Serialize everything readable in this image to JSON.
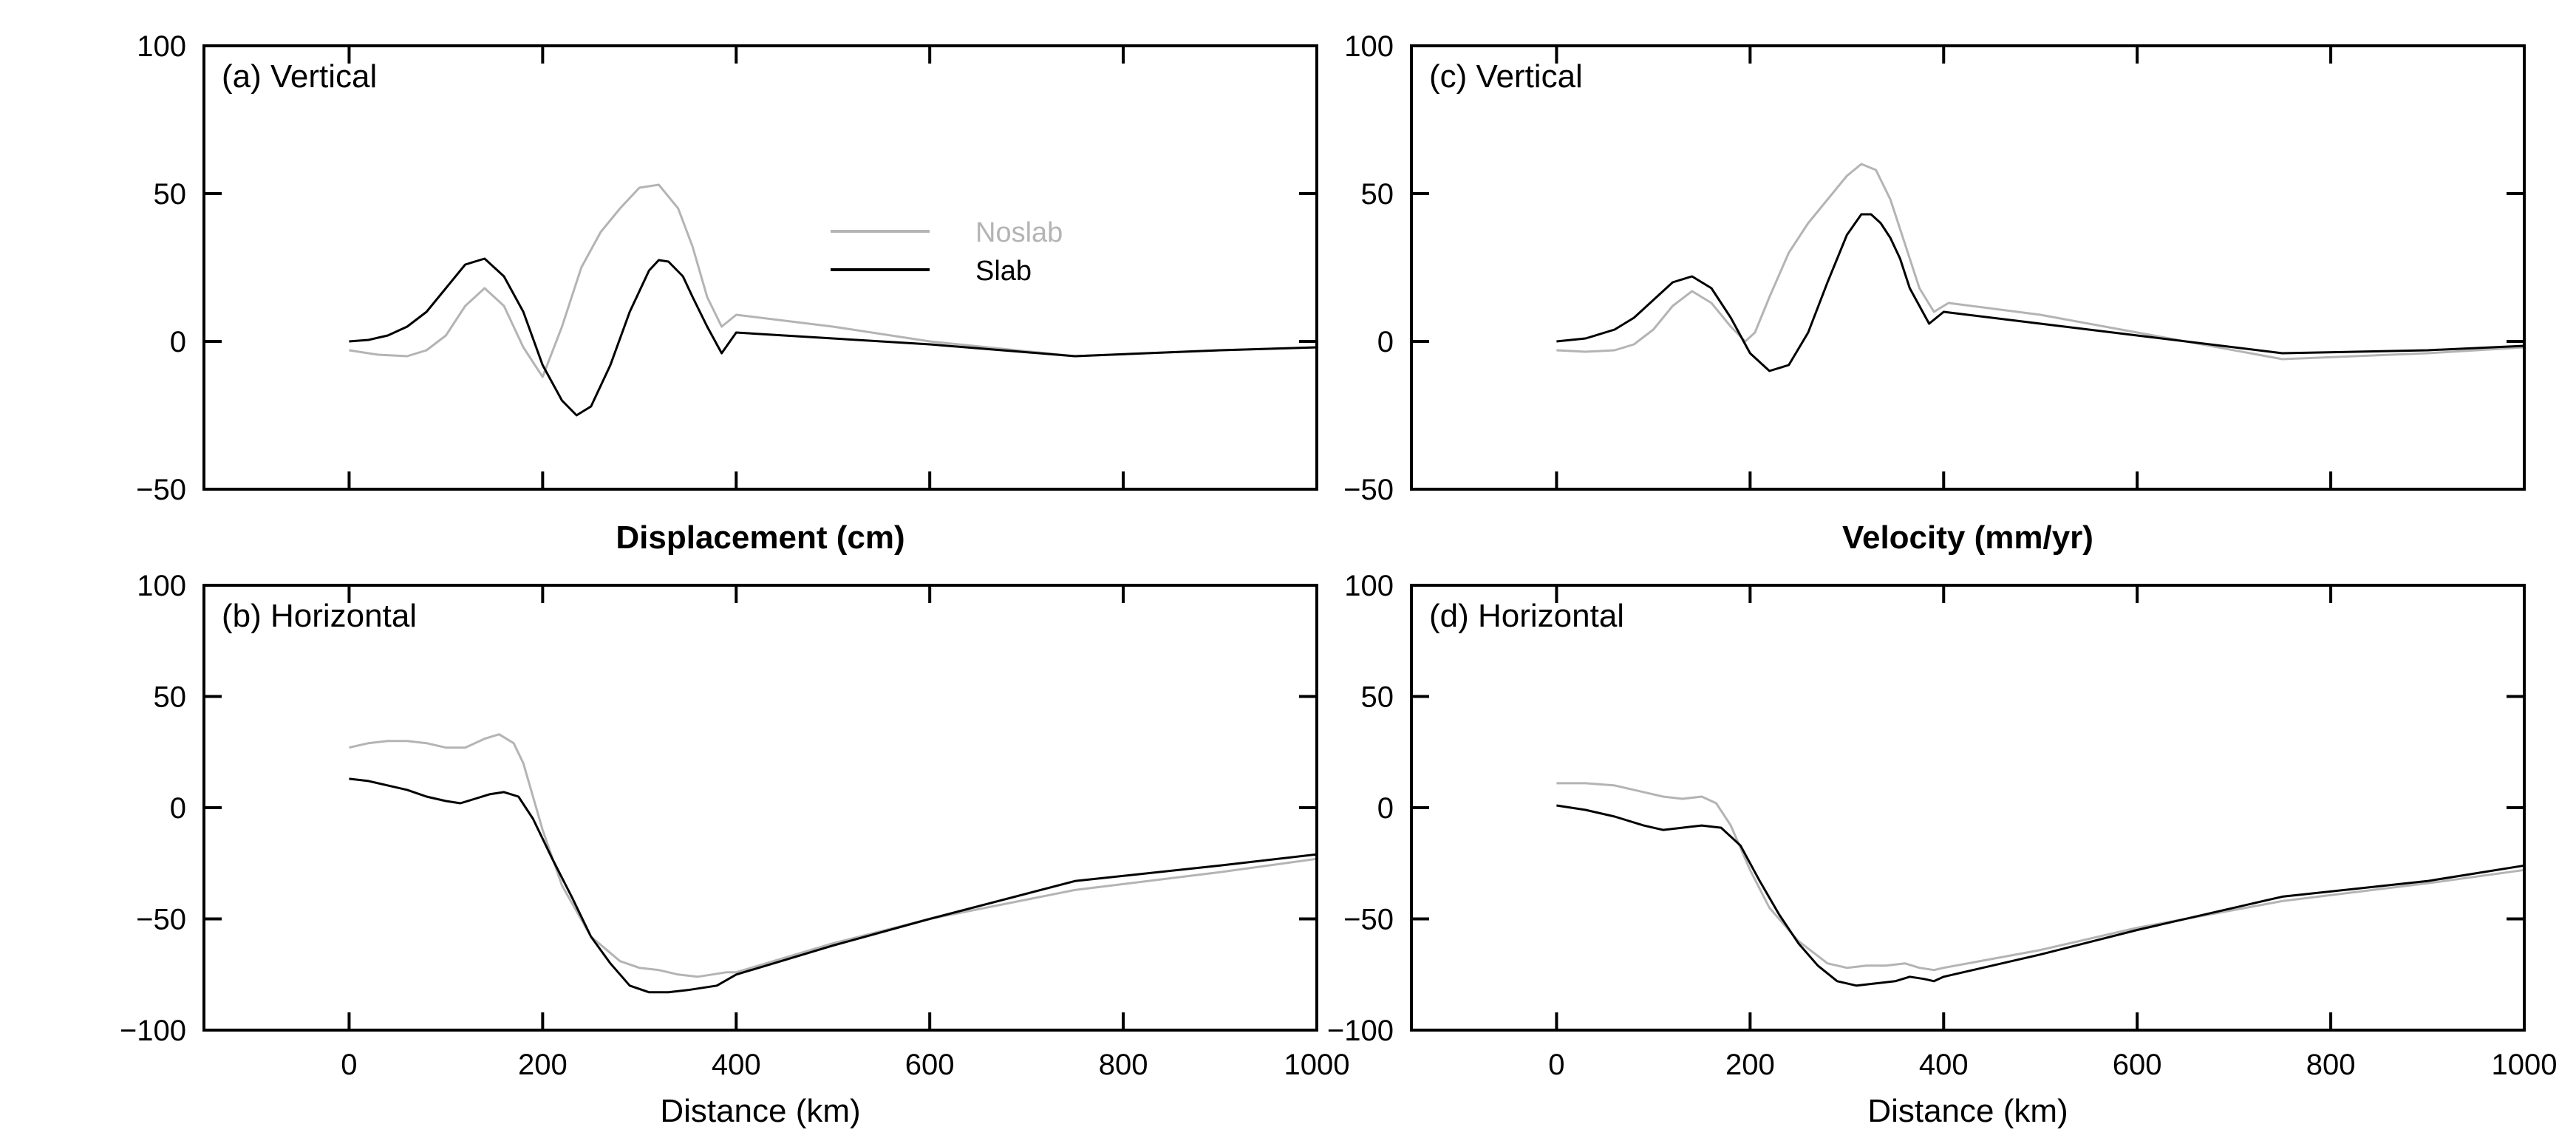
{
  "figure": {
    "xlabel": "Distance (km)",
    "middle_titles": [
      "Displacement (cm)",
      "Velocity (mm/yr)"
    ],
    "legend": [
      {
        "label": "Noslab",
        "color": "#b4b4b4"
      },
      {
        "label": "Slab",
        "color": "#000000"
      }
    ]
  },
  "chart_data": [
    {
      "id": "a",
      "type": "line",
      "panel_label": "(a) Vertical",
      "xlim": [
        -150,
        1000
      ],
      "ylim": [
        -50,
        100
      ],
      "xticks": [
        0,
        200,
        400,
        600,
        800,
        1000
      ],
      "yticks": [
        -50,
        0,
        50,
        100
      ],
      "show_xtick_labels": false,
      "grid": false,
      "legend_position": "upper-middle",
      "series": [
        {
          "name": "Noslab",
          "color": "#b4b4b4",
          "x": [
            0,
            30,
            60,
            80,
            100,
            120,
            140,
            160,
            180,
            200,
            220,
            240,
            260,
            280,
            300,
            320,
            340,
            355,
            370,
            385,
            400,
            500,
            600,
            750,
            900,
            1000
          ],
          "y": [
            -3,
            -4.5,
            -5,
            -3,
            2,
            12,
            18,
            12,
            -2,
            -12,
            5,
            25,
            37,
            45,
            52,
            53,
            45,
            32,
            15,
            5,
            9,
            5,
            0,
            -5,
            -3,
            -2
          ]
        },
        {
          "name": "Slab",
          "color": "#000000",
          "x": [
            0,
            20,
            40,
            60,
            80,
            100,
            120,
            140,
            160,
            180,
            200,
            220,
            235,
            250,
            270,
            290,
            310,
            320,
            330,
            345,
            355,
            370,
            385,
            400,
            500,
            600,
            750,
            900,
            1000
          ],
          "y": [
            0,
            0.5,
            2,
            5,
            10,
            18,
            26,
            28,
            22,
            10,
            -8,
            -20,
            -25,
            -22,
            -8,
            10,
            24,
            27.5,
            27,
            22,
            15,
            5,
            -4,
            3,
            1,
            -1,
            -5,
            -3,
            -2
          ]
        }
      ]
    },
    {
      "id": "b",
      "type": "line",
      "panel_label": "(b) Horizontal",
      "xlim": [
        -150,
        1000
      ],
      "ylim": [
        -100,
        100
      ],
      "xticks": [
        0,
        200,
        400,
        600,
        800,
        1000
      ],
      "yticks": [
        -100,
        -50,
        0,
        50,
        100
      ],
      "show_xtick_labels": true,
      "grid": false,
      "series": [
        {
          "name": "Noslab",
          "color": "#b4b4b4",
          "x": [
            0,
            20,
            40,
            60,
            80,
            100,
            120,
            140,
            155,
            170,
            180,
            200,
            220,
            250,
            280,
            300,
            320,
            340,
            360,
            375,
            390,
            400,
            500,
            600,
            750,
            900,
            1000
          ],
          "y": [
            27,
            29,
            30,
            30,
            29,
            27,
            27,
            31,
            33,
            29,
            20,
            -10,
            -35,
            -58,
            -69,
            -72,
            -73,
            -75,
            -76,
            -75,
            -74,
            -74,
            -61,
            -50,
            -37,
            -29,
            -23
          ]
        },
        {
          "name": "Slab",
          "color": "#000000",
          "x": [
            0,
            20,
            40,
            60,
            80,
            100,
            115,
            130,
            145,
            160,
            175,
            190,
            210,
            230,
            250,
            270,
            290,
            310,
            330,
            350,
            365,
            380,
            400,
            500,
            600,
            750,
            900,
            1000
          ],
          "y": [
            13,
            12,
            10,
            8,
            5,
            3,
            2,
            4,
            6,
            7,
            5,
            -5,
            -23,
            -40,
            -58,
            -70,
            -80,
            -83,
            -83,
            -82,
            -81,
            -80,
            -75,
            -62,
            -50,
            -33,
            -26,
            -21
          ]
        }
      ]
    },
    {
      "id": "c",
      "type": "line",
      "panel_label": "(c) Vertical",
      "xlim": [
        -150,
        1000
      ],
      "ylim": [
        -50,
        100
      ],
      "xticks": [
        0,
        200,
        400,
        600,
        800,
        1000
      ],
      "yticks": [
        -50,
        0,
        50,
        100
      ],
      "show_xtick_labels": false,
      "grid": false,
      "series": [
        {
          "name": "Noslab",
          "color": "#b4b4b4",
          "x": [
            0,
            30,
            60,
            80,
            100,
            120,
            140,
            160,
            180,
            195,
            205,
            220,
            240,
            260,
            280,
            300,
            315,
            330,
            345,
            360,
            375,
            390,
            405,
            500,
            600,
            750,
            900,
            1000
          ],
          "y": [
            -3,
            -3.5,
            -3,
            -1,
            4,
            12,
            17,
            13,
            5,
            0,
            3,
            15,
            30,
            40,
            48,
            56,
            60,
            58,
            48,
            33,
            18,
            10,
            13,
            9,
            3,
            -6,
            -4,
            -2
          ]
        },
        {
          "name": "Slab",
          "color": "#000000",
          "x": [
            0,
            30,
            60,
            80,
            100,
            120,
            140,
            160,
            180,
            200,
            220,
            240,
            260,
            280,
            300,
            315,
            325,
            335,
            345,
            355,
            365,
            375,
            385,
            400,
            500,
            600,
            750,
            900,
            1000
          ],
          "y": [
            0,
            1,
            4,
            8,
            14,
            20,
            22,
            18,
            8,
            -4,
            -10,
            -8,
            3,
            20,
            36,
            43,
            43,
            40,
            35,
            28,
            18,
            12,
            6,
            10,
            6,
            2,
            -4,
            -3,
            -1.5
          ]
        }
      ]
    },
    {
      "id": "d",
      "type": "line",
      "panel_label": "(d) Horizontal",
      "xlim": [
        -150,
        1000
      ],
      "ylim": [
        -100,
        100
      ],
      "xticks": [
        0,
        200,
        400,
        600,
        800,
        1000
      ],
      "yticks": [
        -100,
        -50,
        0,
        50,
        100
      ],
      "show_xtick_labels": true,
      "grid": false,
      "series": [
        {
          "name": "Noslab",
          "color": "#b4b4b4",
          "x": [
            0,
            30,
            60,
            90,
            110,
            130,
            150,
            165,
            180,
            200,
            220,
            250,
            280,
            300,
            320,
            340,
            360,
            375,
            390,
            400,
            500,
            600,
            750,
            900,
            1000
          ],
          "y": [
            11,
            11,
            10,
            7,
            5,
            4,
            5,
            2,
            -8,
            -28,
            -45,
            -60,
            -70,
            -72,
            -71,
            -71,
            -70,
            -72,
            -73,
            -72,
            -64,
            -54,
            -42,
            -34,
            -28
          ]
        },
        {
          "name": "Slab",
          "color": "#000000",
          "x": [
            0,
            30,
            60,
            90,
            110,
            130,
            150,
            170,
            190,
            210,
            230,
            250,
            270,
            290,
            310,
            330,
            350,
            365,
            380,
            390,
            400,
            500,
            600,
            750,
            900,
            1000
          ],
          "y": [
            1,
            -1,
            -4,
            -8,
            -10,
            -9,
            -8,
            -9,
            -17,
            -33,
            -48,
            -61,
            -71,
            -78,
            -80,
            -79,
            -78,
            -76,
            -77,
            -78,
            -76,
            -66,
            -55,
            -40,
            -33,
            -26
          ]
        }
      ]
    }
  ]
}
